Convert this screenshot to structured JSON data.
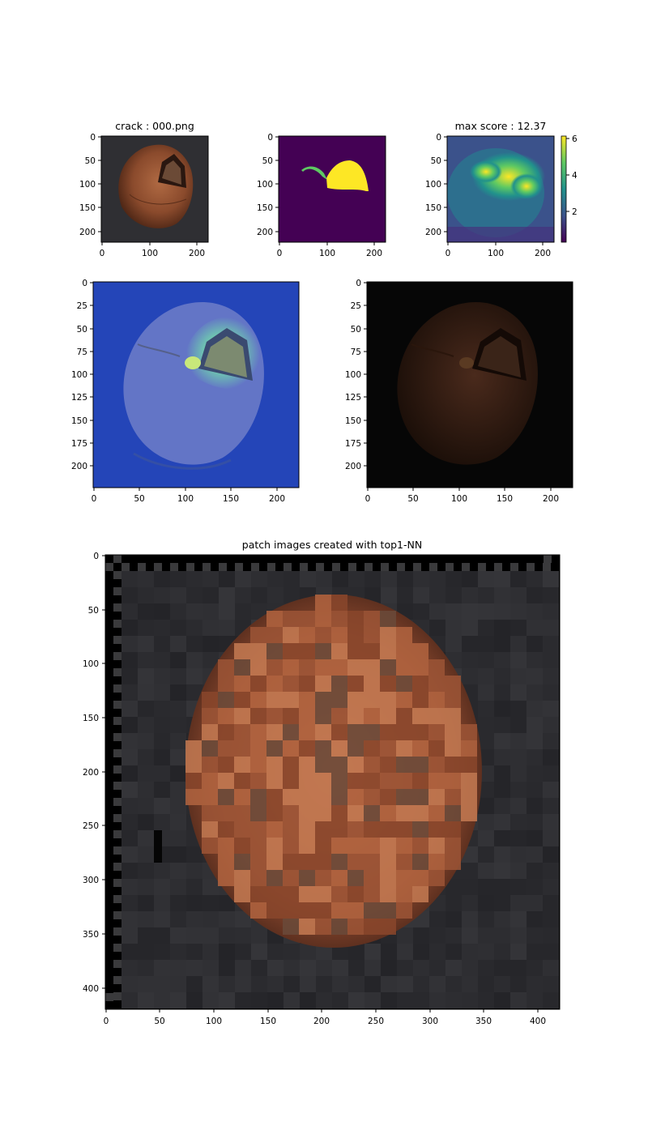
{
  "panels": [
    {
      "id": "original",
      "title": "crack : 000.png",
      "image": "hazelnut-original",
      "x_ticks": [
        "0",
        "100",
        "200"
      ],
      "y_ticks": [
        "0",
        "50",
        "100",
        "150",
        "200"
      ]
    },
    {
      "id": "ground-truth",
      "title": "",
      "image": "ground-truth-mask",
      "x_ticks": [
        "0",
        "100",
        "200"
      ],
      "y_ticks": [
        "0",
        "50",
        "100",
        "150",
        "200"
      ]
    },
    {
      "id": "score-map",
      "title": "max score : 12.37",
      "image": "anomaly-score-heatmap",
      "x_ticks": [
        "0",
        "100",
        "200"
      ],
      "y_ticks": [
        "0",
        "50",
        "100",
        "150",
        "200"
      ],
      "colorbar_ticks": [
        "6",
        "4",
        "2"
      ]
    },
    {
      "id": "heatmap-overlay",
      "title": "",
      "image": "hazelnut-heatmap-overlay",
      "x_ticks": [
        "0",
        "50",
        "100",
        "150",
        "200"
      ],
      "y_ticks": [
        "0",
        "25",
        "50",
        "75",
        "100",
        "125",
        "150",
        "175",
        "200"
      ]
    },
    {
      "id": "masked-image",
      "title": "",
      "image": "hazelnut-darkened",
      "x_ticks": [
        "0",
        "50",
        "100",
        "150",
        "200"
      ],
      "y_ticks": [
        "0",
        "25",
        "50",
        "75",
        "100",
        "125",
        "150",
        "175",
        "200"
      ]
    },
    {
      "id": "patch-images",
      "title": "patch images created with top1-NN",
      "image": "patch-mosaic",
      "x_ticks": [
        "0",
        "50",
        "100",
        "150",
        "200",
        "250",
        "300",
        "350",
        "400"
      ],
      "y_ticks": [
        "0",
        "50",
        "100",
        "150",
        "200",
        "250",
        "300",
        "350",
        "400"
      ]
    }
  ],
  "colors": {
    "viridis_low": "#440154",
    "viridis_mid": "#21918c",
    "viridis_high": "#fde725",
    "nut_brown": "#8a4a2c",
    "background_dark": "#2a2a2d"
  }
}
